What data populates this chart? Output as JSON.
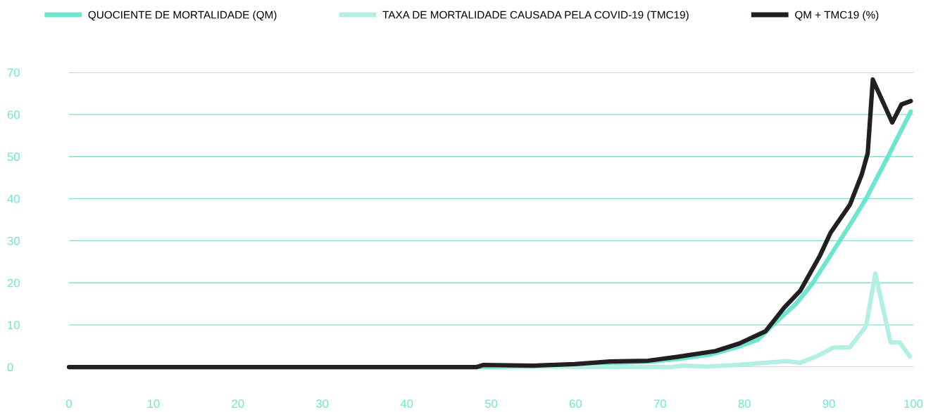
{
  "chart_data": {
    "type": "line",
    "xlim": [
      0,
      100
    ],
    "xticks": [
      0,
      10,
      20,
      30,
      40,
      50,
      60,
      70,
      80,
      90,
      100
    ],
    "ylim": [
      0,
      70
    ],
    "yticks": [
      0,
      10,
      20,
      30,
      40,
      50,
      60,
      70
    ],
    "grid": "y",
    "legend": "top",
    "marker": "none",
    "line_style": "solid",
    "series": [
      {
        "name": "QUOCIENTE DE MORTALIDADE (QM)",
        "color": "#6ee6cf",
        "x": [
          0,
          48,
          55,
          60,
          64,
          69,
          72,
          76.1,
          79.4,
          81.6,
          83.8,
          86.1,
          88.0,
          90.5,
          92.5,
          94.4,
          97.0,
          99.7
        ],
        "values": [
          0,
          0,
          0.1,
          0.4,
          0.9,
          1.3,
          1.9,
          3.0,
          4.9,
          6.5,
          10.8,
          15.0,
          19.7,
          27.5,
          33.8,
          40.0,
          50.0,
          60.7
        ]
      },
      {
        "name": "TAXA DE MORTALIDADE CAUSADA PELA COVID-19 (TMC19)",
        "color": "#b3f0e3",
        "x": [
          0,
          48,
          49,
          55,
          60,
          71.3,
          72.7,
          75.5,
          79.1,
          85.0,
          86.6,
          88.6,
          90.5,
          92.5,
          94.4,
          95.5,
          97.3,
          98.4,
          99.6
        ],
        "values": [
          0,
          0,
          0.3,
          0.1,
          0,
          0,
          0.3,
          0.1,
          0.5,
          1.4,
          1.0,
          2.6,
          4.6,
          4.7,
          9.7,
          22.2,
          5.9,
          5.8,
          2.5
        ]
      },
      {
        "name": "QM + TMC19 (%)",
        "color": "#231f20",
        "x": [
          0,
          48.3,
          49.1,
          54.9,
          59.9,
          64.1,
          68.6,
          72.0,
          76.6,
          79.4,
          82.5,
          84.7,
          86.6,
          88.9,
          90.2,
          92.5,
          93.9,
          94.6,
          95.2,
          97.5,
          98.6,
          99.7
        ],
        "values": [
          0,
          0,
          0.5,
          0.3,
          0.7,
          1.3,
          1.5,
          2.4,
          3.8,
          5.6,
          8.5,
          14.1,
          18.1,
          26.3,
          31.9,
          38.6,
          45.8,
          50.8,
          68.3,
          58.1,
          62.4,
          63.2
        ]
      }
    ]
  }
}
